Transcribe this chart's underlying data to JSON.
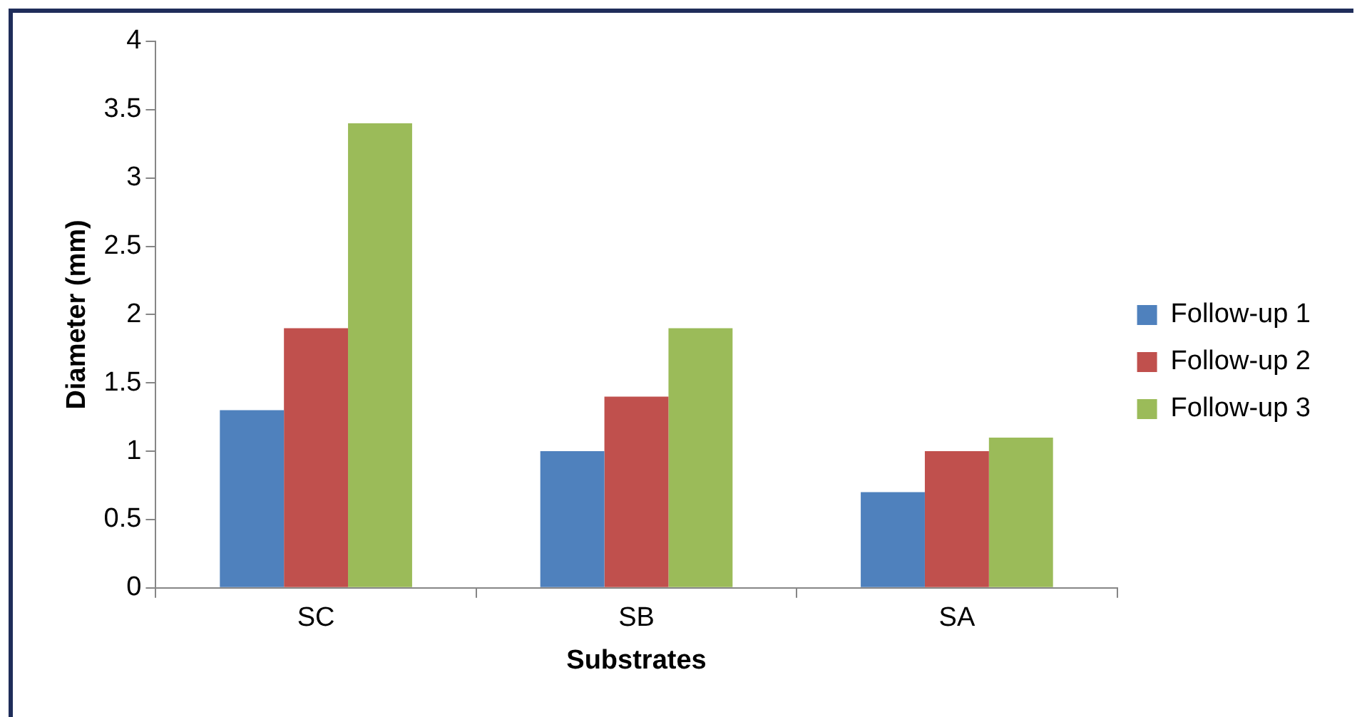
{
  "chart_data": {
    "type": "bar",
    "xlabel": "Substrates",
    "ylabel": "Diameter (mm)",
    "categories": [
      "SC",
      "SB",
      "SA"
    ],
    "series": [
      {
        "name": "Follow-up 1",
        "color": "#4f81bd",
        "values": [
          1.3,
          1.0,
          0.7
        ]
      },
      {
        "name": "Follow-up 2",
        "color": "#c0504d",
        "values": [
          1.9,
          1.4,
          1.0
        ]
      },
      {
        "name": "Follow-up 3",
        "color": "#9bbb59",
        "values": [
          3.4,
          1.9,
          1.1
        ]
      }
    ],
    "ylim": [
      0,
      4
    ],
    "yticks": [
      0,
      0.5,
      1,
      1.5,
      2,
      2.5,
      3,
      3.5,
      4
    ],
    "grid": false,
    "legend": "right"
  }
}
